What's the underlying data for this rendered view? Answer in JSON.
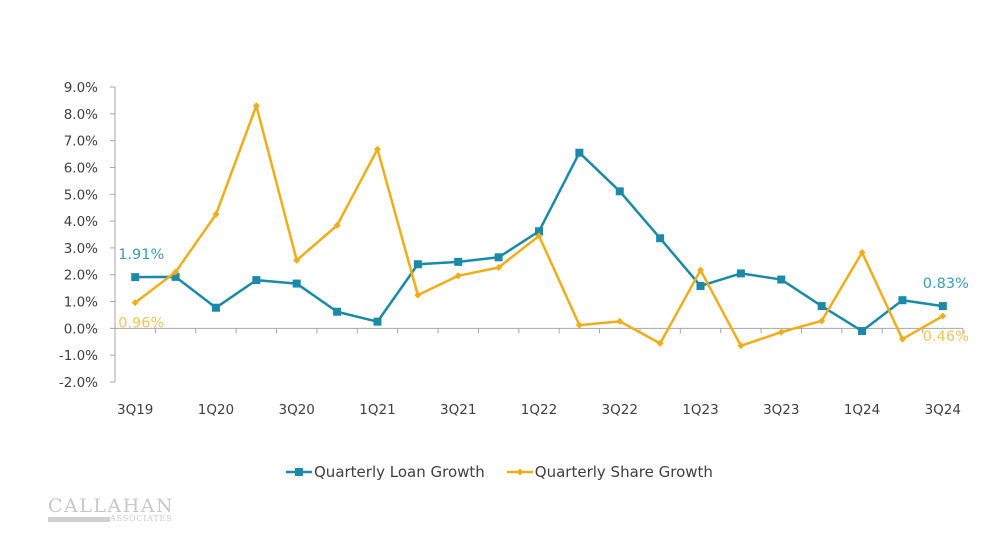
{
  "chart_data": {
    "type": "line",
    "title": "",
    "xlabel": "",
    "ylabel": "",
    "ylim": [
      -0.02,
      0.09
    ],
    "y_ticks": [
      -0.02,
      -0.01,
      0.0,
      0.01,
      0.02,
      0.03,
      0.04,
      0.05,
      0.06,
      0.07,
      0.08,
      0.09
    ],
    "y_tick_labels": [
      "-2.0%",
      "-1.0%",
      "0.0%",
      "1.0%",
      "2.0%",
      "3.0%",
      "4.0%",
      "5.0%",
      "6.0%",
      "7.0%",
      "8.0%",
      "9.0%"
    ],
    "grid": false,
    "categories": [
      "3Q19",
      "4Q19",
      "1Q20",
      "2Q20",
      "3Q20",
      "4Q20",
      "1Q21",
      "2Q21",
      "3Q21",
      "4Q21",
      "1Q22",
      "2Q22",
      "3Q22",
      "4Q22",
      "1Q23",
      "2Q23",
      "3Q23",
      "4Q23",
      "1Q24",
      "2Q24",
      "3Q24"
    ],
    "x_tick_labels_shown": [
      "3Q19",
      "1Q20",
      "3Q20",
      "1Q21",
      "3Q21",
      "1Q22",
      "3Q22",
      "1Q23",
      "3Q23",
      "1Q24",
      "3Q24"
    ],
    "legend_position": "bottom",
    "series": [
      {
        "name": "Quarterly Loan Growth",
        "color": "#1a8aa8",
        "marker": "square",
        "values": [
          0.0191,
          0.0192,
          0.0077,
          0.018,
          0.0167,
          0.0062,
          0.0025,
          0.0239,
          0.0248,
          0.0265,
          0.0362,
          0.0655,
          0.0511,
          0.0336,
          0.0158,
          0.0205,
          0.0182,
          0.0083,
          -0.001,
          0.0105,
          0.0083
        ],
        "annotations": [
          {
            "index": 0,
            "text": "1.91%",
            "position": "above"
          },
          {
            "index": 20,
            "text": "0.83%",
            "position": "above"
          }
        ]
      },
      {
        "name": "Quarterly Share Growth",
        "color": "#f0ad1a",
        "marker": "diamond",
        "values": [
          0.0096,
          0.021,
          0.0425,
          0.083,
          0.0254,
          0.0384,
          0.0668,
          0.0124,
          0.0196,
          0.0227,
          0.0345,
          0.0012,
          0.0026,
          -0.0056,
          0.0217,
          -0.0065,
          -0.0014,
          0.0028,
          0.0283,
          -0.004,
          0.0046
        ],
        "annotations": [
          {
            "index": 0,
            "text": "0.96%",
            "position": "below"
          },
          {
            "index": 20,
            "text": "0.46%",
            "position": "below"
          }
        ]
      }
    ]
  },
  "legend": {
    "items": [
      {
        "label": "Quarterly Loan Growth",
        "color": "#1a8aa8"
      },
      {
        "label": "Quarterly Share Growth",
        "color": "#f0ad1a"
      }
    ]
  },
  "logo": {
    "main": "CALLAHAN",
    "sub": "ASSOCIATES"
  }
}
